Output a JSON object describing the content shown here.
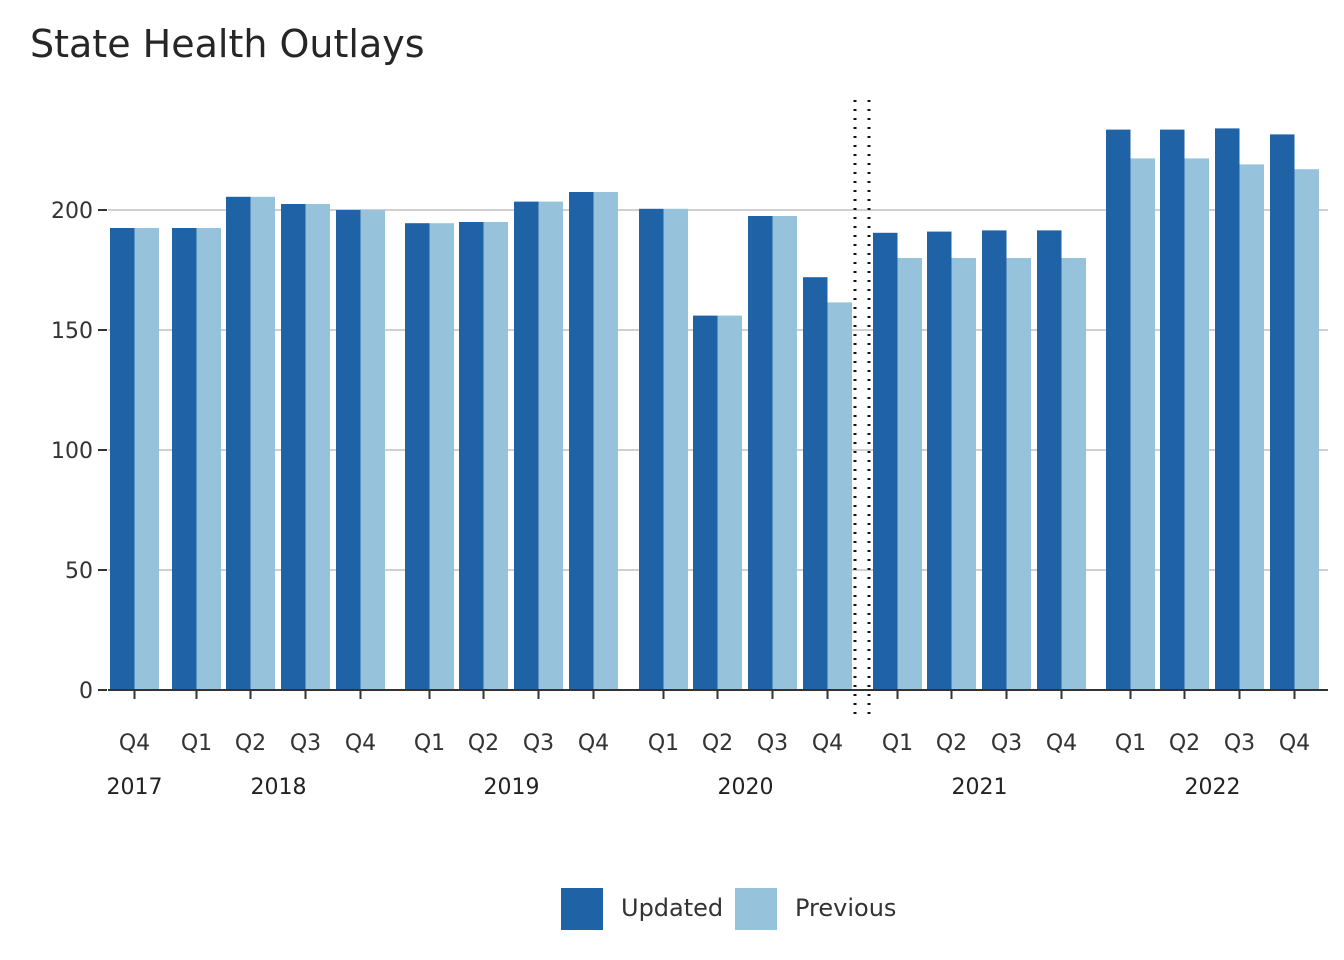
{
  "chart_data": {
    "type": "bar",
    "title": "State Health Outlays",
    "xlabel": "",
    "ylabel": "",
    "ylim": [
      0,
      240
    ],
    "yticks": [
      0,
      50,
      100,
      150,
      200
    ],
    "grid": true,
    "legend_position": "bottom",
    "colors": {
      "Updated": "#1f62a6",
      "Previous": "#96c2dc"
    },
    "groups": [
      {
        "year": "2017",
        "quarters": [
          "Q4"
        ]
      },
      {
        "year": "2018",
        "quarters": [
          "Q1",
          "Q2",
          "Q3",
          "Q4"
        ]
      },
      {
        "year": "2019",
        "quarters": [
          "Q1",
          "Q2",
          "Q3",
          "Q4"
        ]
      },
      {
        "year": "2020",
        "quarters": [
          "Q1",
          "Q2",
          "Q3",
          "Q4"
        ]
      },
      {
        "year": "2021",
        "quarters": [
          "Q1",
          "Q2",
          "Q3",
          "Q4"
        ]
      },
      {
        "year": "2022",
        "quarters": [
          "Q1",
          "Q2",
          "Q3",
          "Q4"
        ]
      }
    ],
    "series": [
      {
        "name": "Updated",
        "values": [
          192.5,
          192.5,
          205.5,
          202.5,
          200,
          194.5,
          195,
          203.5,
          207.5,
          200.5,
          156,
          197.5,
          172,
          190.5,
          191,
          191.5,
          191.5,
          233.5,
          233.5,
          234,
          231.5
        ]
      },
      {
        "name": "Previous",
        "values": [
          192.5,
          192.5,
          205.5,
          202.5,
          200,
          194.5,
          195,
          203.5,
          207.5,
          200.5,
          156,
          197.5,
          161.5,
          180,
          180,
          180,
          180,
          221.5,
          221.5,
          219,
          217
        ]
      }
    ]
  }
}
